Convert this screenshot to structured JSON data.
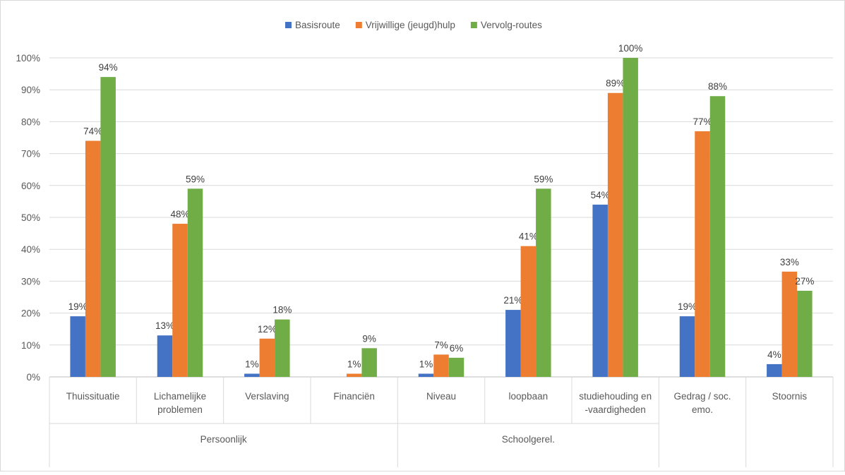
{
  "chart_data": {
    "type": "bar",
    "legend": {
      "position": "top",
      "entries": [
        "Basisroute",
        "Vrijwillige (jeugd)hulp",
        "Vervolg-routes"
      ]
    },
    "ylim": [
      0,
      100
    ],
    "y_ticks": [
      "0%",
      "10%",
      "20%",
      "30%",
      "40%",
      "50%",
      "60%",
      "70%",
      "80%",
      "90%",
      "100%"
    ],
    "grid": "horizontal",
    "categories": [
      {
        "lines": [
          "Thuissituatie"
        ]
      },
      {
        "lines": [
          "Lichamelijke",
          "problemen"
        ]
      },
      {
        "lines": [
          "Verslaving"
        ]
      },
      {
        "lines": [
          "Financiën"
        ]
      },
      {
        "lines": [
          "Niveau"
        ]
      },
      {
        "lines": [
          "loopbaan"
        ]
      },
      {
        "lines": [
          "studiehouding en",
          "-vaardigheden"
        ]
      },
      {
        "lines": [
          "Gedrag / soc.",
          "emo."
        ]
      },
      {
        "lines": [
          "Stoornis"
        ]
      }
    ],
    "groups": [
      {
        "lines": [
          "Persoonlijk"
        ],
        "span": [
          0,
          3
        ]
      },
      {
        "lines": [
          "Schoolgerel."
        ],
        "span": [
          4,
          6
        ]
      },
      {
        "lines": [
          "Gedrag / soc.",
          "emo."
        ],
        "span": [
          7,
          7
        ]
      },
      {
        "lines": [
          "Stoornis"
        ],
        "span": [
          8,
          8
        ]
      }
    ],
    "series": [
      {
        "name": "Basisroute",
        "color": "#4472C4",
        "values": [
          19,
          13,
          1,
          null,
          1,
          21,
          54,
          19,
          4
        ],
        "labels": [
          "19%",
          "13%",
          "1%",
          "",
          "1%",
          "21%",
          "54%",
          "19%",
          "4%"
        ]
      },
      {
        "name": "Vrijwillige (jeugd)hulp",
        "color": "#ED7D31",
        "values": [
          74,
          48,
          12,
          1,
          7,
          41,
          89,
          77,
          33
        ],
        "labels": [
          "74%",
          "48%",
          "12%",
          "1%",
          "7%",
          "41%",
          "89%",
          "77%",
          "33%"
        ]
      },
      {
        "name": "Vervolg-routes",
        "color": "#70AD47",
        "values": [
          94,
          59,
          18,
          9,
          6,
          59,
          100,
          88,
          27
        ],
        "labels": [
          "94%",
          "59%",
          "18%",
          "9%",
          "6%",
          "59%",
          "100%",
          "88%",
          "27%"
        ]
      }
    ]
  }
}
